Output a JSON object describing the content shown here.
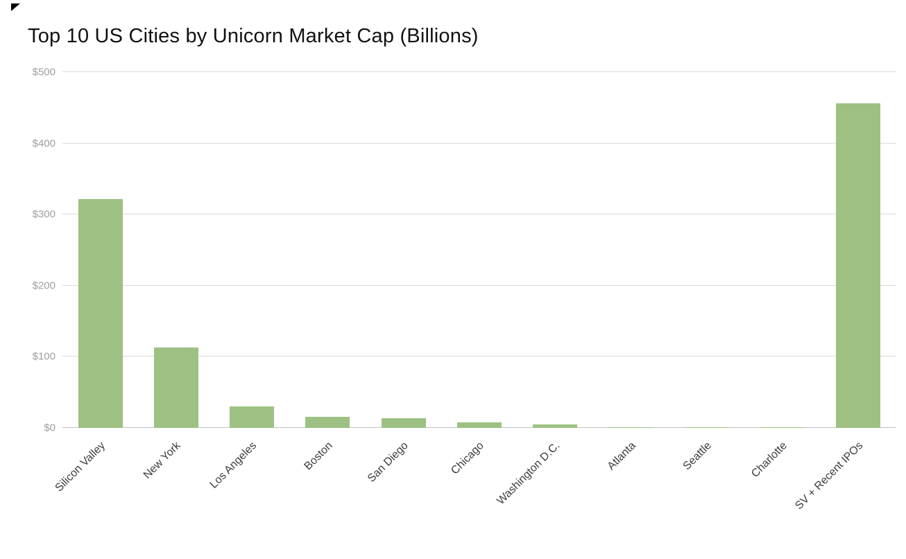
{
  "icons": {
    "corner_marker": "black-triangle"
  },
  "chart_data": {
    "type": "bar",
    "title": "Top 10 US Cities by Unicorn Market Cap (Billions)",
    "categories": [
      "Silicon Valley",
      "New York",
      "Los Angeles",
      "Boston",
      "San Diego",
      "Chicago",
      "Washington D.C.",
      "Atlanta",
      "Seattle",
      "Charlotte",
      "SV + Recent IPOs"
    ],
    "values": [
      322,
      113,
      30,
      16,
      14,
      8,
      5,
      1,
      1,
      0.5,
      456
    ],
    "xlabel": "",
    "ylabel": "",
    "ylim": [
      0,
      500
    ],
    "yticks": [
      {
        "value": 0,
        "label": "$0"
      },
      {
        "value": 100,
        "label": "$100"
      },
      {
        "value": 200,
        "label": "$200"
      },
      {
        "value": 300,
        "label": "$300"
      },
      {
        "value": 400,
        "label": "$400"
      },
      {
        "value": 500,
        "label": "$500"
      }
    ],
    "bar_color": "#9dc183",
    "grid": true,
    "legend": "none"
  }
}
